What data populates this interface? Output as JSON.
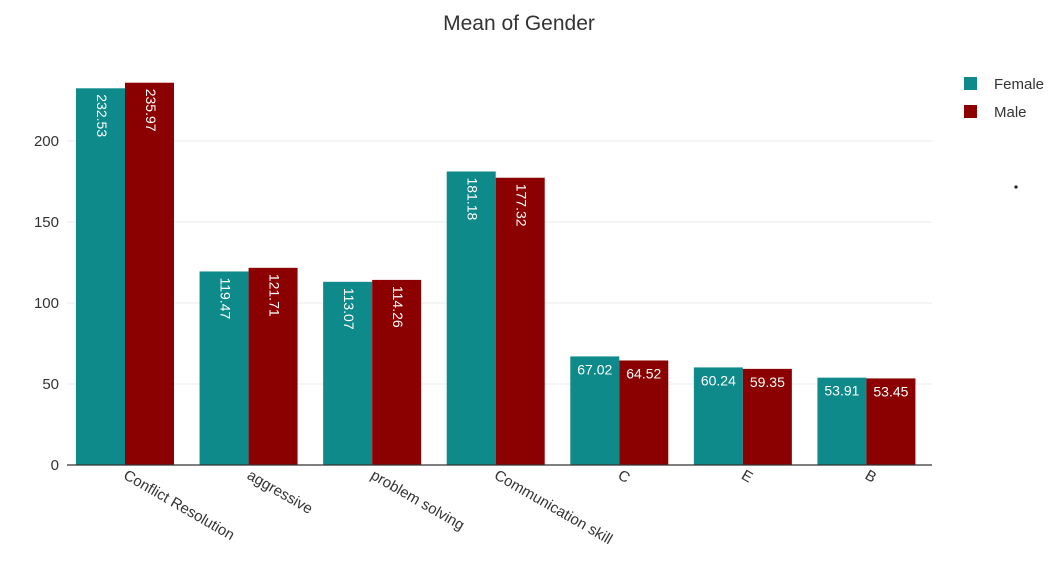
{
  "chart_data": {
    "type": "bar",
    "title": "Mean of Gender",
    "xlabel": "",
    "ylabel": "",
    "categories": [
      "Conflict Resolution",
      "aggressive",
      "problem solving",
      "Communication skill",
      "C",
      "E",
      "B"
    ],
    "series": [
      {
        "name": "Female",
        "color": "#0e8a8a",
        "values": [
          232.53,
          119.47,
          113.07,
          181.18,
          67.02,
          60.24,
          53.91
        ]
      },
      {
        "name": "Male",
        "color": "#8b0000",
        "values": [
          235.97,
          121.71,
          114.26,
          177.32,
          64.52,
          59.35,
          53.45
        ]
      }
    ],
    "labels": [
      [
        "232.53",
        "119.47",
        "113.07",
        "181.18",
        "67.02",
        "60.24",
        "53.91"
      ],
      [
        "235.97",
        "121.71",
        "114.26",
        "177.32",
        "64.52",
        "59.35",
        "53.45"
      ]
    ],
    "label_orientation": [
      "vertical",
      "vertical",
      "vertical",
      "vertical",
      "horizontal",
      "horizontal",
      "horizontal"
    ],
    "ylim": [
      0,
      240
    ],
    "yticks": [
      0,
      50,
      100,
      150,
      200
    ],
    "grid": true,
    "legend": "top-right"
  }
}
